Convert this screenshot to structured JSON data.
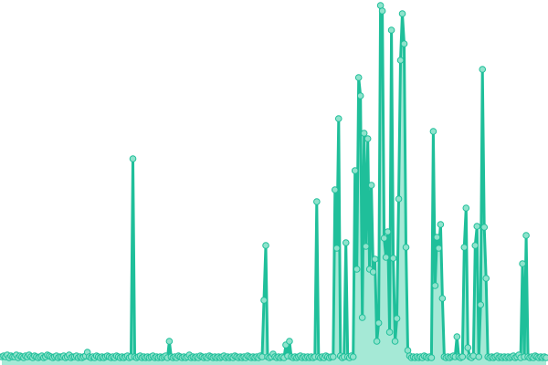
{
  "chart_data": {
    "type": "line",
    "title": "",
    "xlabel": "",
    "ylabel": "",
    "grid": false,
    "axes_visible": false,
    "legend": "none",
    "markers": true,
    "area_fill": true,
    "ylim": [
      0,
      390
    ],
    "colors": {
      "line": "#1fbf9a",
      "marker_fill": "#8fe3cc",
      "area": "#8fe3cc"
    },
    "values": [
      3,
      4,
      3,
      5,
      2,
      4,
      3,
      3,
      5,
      2,
      4,
      3,
      2,
      4,
      3,
      5,
      3,
      2,
      4,
      3,
      2,
      3,
      4,
      2,
      3,
      5,
      4,
      3,
      2,
      3,
      4,
      2,
      3,
      3,
      4,
      2,
      3,
      5,
      2,
      3,
      3,
      4,
      2,
      3,
      2,
      3,
      4,
      8,
      3,
      2,
      3,
      2,
      4,
      3,
      2,
      3,
      2,
      3,
      4,
      3,
      2,
      3,
      2,
      4,
      3,
      2,
      3,
      2,
      3,
      4,
      2,
      3,
      220,
      3,
      2,
      3,
      4,
      2,
      3,
      2,
      3,
      2,
      3,
      4,
      2,
      3,
      2,
      3,
      2,
      3,
      4,
      2,
      20,
      3,
      2,
      3,
      2,
      4,
      3,
      2,
      3,
      2,
      3,
      5,
      2,
      3,
      2,
      3,
      2,
      4,
      3,
      2,
      3,
      2,
      4,
      3,
      2,
      3,
      2,
      3,
      2,
      3,
      4,
      2,
      3,
      2,
      3,
      2,
      4,
      3,
      2,
      3,
      2,
      3,
      2,
      4,
      3,
      2,
      3,
      2,
      3,
      2,
      4,
      3,
      65,
      125,
      3,
      2,
      3,
      6,
      3,
      2,
      3,
      2,
      3,
      2,
      16,
      4,
      20,
      3,
      2,
      3,
      2,
      3,
      4,
      2,
      3,
      2,
      3,
      2,
      3,
      2,
      3,
      173,
      3,
      2,
      3,
      2,
      4,
      3,
      2,
      3,
      3,
      186,
      122,
      264,
      4,
      2,
      3,
      128,
      3,
      2,
      4,
      3,
      207,
      99,
      309,
      289,
      46,
      248,
      124,
      242,
      99,
      191,
      96,
      110,
      20,
      40,
      388,
      382,
      133,
      112,
      140,
      30,
      361,
      111,
      20,
      45,
      176,
      328,
      379,
      346,
      123,
      10,
      4,
      2,
      3,
      2,
      3,
      2,
      3,
      2,
      4,
      3,
      2,
      3,
      2,
      250,
      81,
      134,
      122,
      148,
      67,
      3,
      2,
      3,
      2,
      3,
      4,
      3,
      25,
      3,
      2,
      3,
      123,
      166,
      13,
      3,
      2,
      4,
      125,
      146,
      3,
      60,
      318,
      145,
      89,
      3,
      2,
      3,
      2,
      3,
      4,
      2,
      3,
      2,
      3,
      2,
      3,
      2,
      3,
      4,
      2,
      3,
      5,
      2,
      105,
      3,
      136,
      3,
      2,
      3,
      2,
      4,
      3,
      2,
      3,
      2,
      3,
      2
    ]
  }
}
